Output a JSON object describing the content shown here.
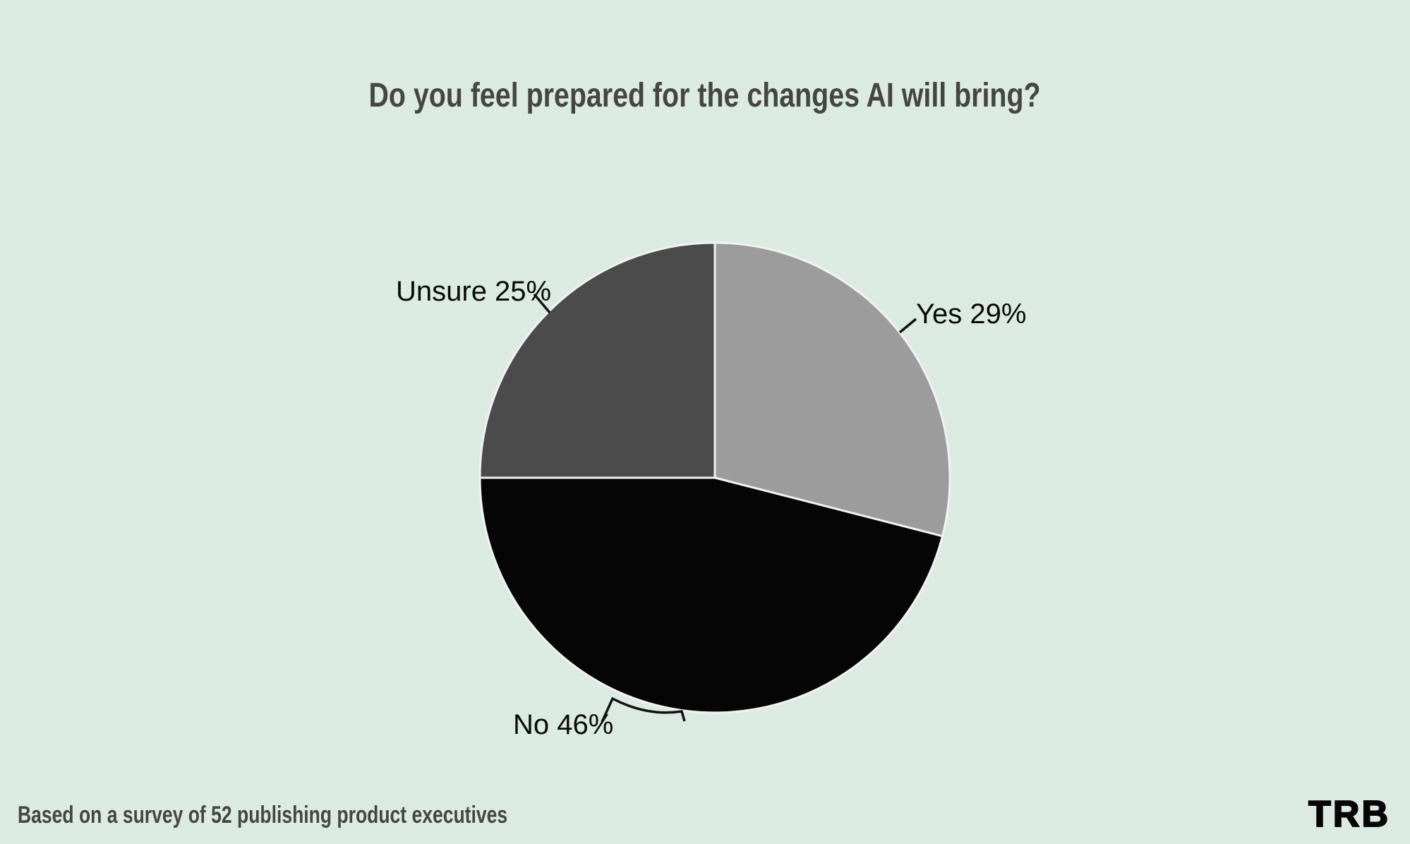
{
  "page": {
    "background_color": "#dcebe2",
    "title": "Do you feel prepared for the changes AI will bring?",
    "title_color": "#454545",
    "footer_note": "Based on a survey of 52 publishing product executives",
    "footer_color": "#454545",
    "logo_text": "TRB",
    "logo_color": "#060606"
  },
  "chart_data": {
    "type": "pie",
    "title": "Do you feel prepared for the changes AI will bring?",
    "subtitle": "",
    "source_note": "Based on a survey of 52 publishing product executives",
    "sample_size": 52,
    "start_angle_deg": 0,
    "direction": "clockwise",
    "legend": "none",
    "annotation_style": "leader-lines",
    "slice_divider_color": "#f2f2f2",
    "label_color": "#0a0a0a",
    "slices": [
      {
        "label": "Yes",
        "value_pct": 29,
        "color": "#9c9c9c",
        "display_label": "Yes 29%"
      },
      {
        "label": "No",
        "value_pct": 46,
        "color": "#050505",
        "display_label": "No 46%"
      },
      {
        "label": "Unsure",
        "value_pct": 25,
        "color": "#4b4b4b",
        "display_label": "Unsure 25%"
      }
    ]
  }
}
